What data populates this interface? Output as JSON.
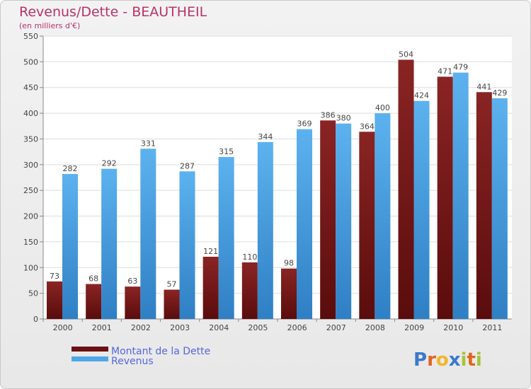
{
  "title": "Revenus/Dette - BEAUTHEIL",
  "subtitle": "(en milliers d'€)",
  "colors": {
    "dette": "#7a1a1a",
    "revenus": "#4ea6e6",
    "text_accent": "#b8336a",
    "legend_text": "#5566dd"
  },
  "brand": {
    "letters": [
      "P",
      "r",
      "o",
      "x",
      "i",
      "t",
      "i"
    ],
    "colors": [
      "#3b79c9",
      "#e0651f",
      "#f0b72b",
      "#3b79c9",
      "#a5c539",
      "#e0651f",
      "#a5c539"
    ]
  },
  "chart_data": {
    "type": "bar",
    "categories": [
      "2000",
      "2001",
      "2002",
      "2003",
      "2004",
      "2005",
      "2006",
      "2007",
      "2008",
      "2009",
      "2010",
      "2011"
    ],
    "series": [
      {
        "name": "Montant de la Dette",
        "values": [
          73,
          68,
          63,
          57,
          121,
          110,
          98,
          386,
          364,
          504,
          471,
          441
        ]
      },
      {
        "name": "Revenus",
        "values": [
          282,
          292,
          331,
          287,
          315,
          344,
          369,
          380,
          400,
          424,
          479,
          429
        ]
      }
    ],
    "ylim": [
      0,
      550
    ],
    "yticks": [
      0,
      50,
      100,
      150,
      200,
      250,
      300,
      350,
      400,
      450,
      500,
      550
    ],
    "grid": true,
    "legend_position": "bottom-left"
  }
}
